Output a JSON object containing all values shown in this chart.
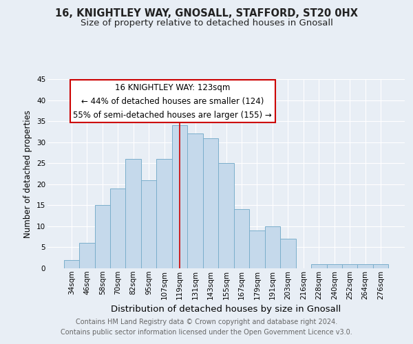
{
  "title": "16, KNIGHTLEY WAY, GNOSALL, STAFFORD, ST20 0HX",
  "subtitle": "Size of property relative to detached houses in Gnosall",
  "xlabel": "Distribution of detached houses by size in Gnosall",
  "ylabel": "Number of detached properties",
  "bar_labels": [
    "34sqm",
    "46sqm",
    "58sqm",
    "70sqm",
    "82sqm",
    "95sqm",
    "107sqm",
    "119sqm",
    "131sqm",
    "143sqm",
    "155sqm",
    "167sqm",
    "179sqm",
    "191sqm",
    "203sqm",
    "216sqm",
    "228sqm",
    "240sqm",
    "252sqm",
    "264sqm",
    "276sqm"
  ],
  "bar_values": [
    2,
    6,
    15,
    19,
    26,
    21,
    26,
    34,
    32,
    31,
    25,
    14,
    9,
    10,
    7,
    0,
    1,
    1,
    1,
    1,
    1
  ],
  "bar_color": "#c5d9eb",
  "bar_edge_color": "#7aaecb",
  "highlight_index": 7,
  "highlight_line_color": "#cc0000",
  "annotation_title": "16 KNIGHTLEY WAY: 123sqm",
  "annotation_line1": "← 44% of detached houses are smaller (124)",
  "annotation_line2": "55% of semi-detached houses are larger (155) →",
  "annotation_box_color": "#ffffff",
  "annotation_box_edge_color": "#cc0000",
  "ylim": [
    0,
    45
  ],
  "yticks": [
    0,
    5,
    10,
    15,
    20,
    25,
    30,
    35,
    40,
    45
  ],
  "background_color": "#e8eef5",
  "grid_color": "#ffffff",
  "footer_line1": "Contains HM Land Registry data © Crown copyright and database right 2024.",
  "footer_line2": "Contains public sector information licensed under the Open Government Licence v3.0.",
  "title_fontsize": 10.5,
  "subtitle_fontsize": 9.5,
  "xlabel_fontsize": 9.5,
  "ylabel_fontsize": 8.5,
  "tick_fontsize": 7.5,
  "footer_fontsize": 7,
  "annotation_fontsize": 8.5
}
